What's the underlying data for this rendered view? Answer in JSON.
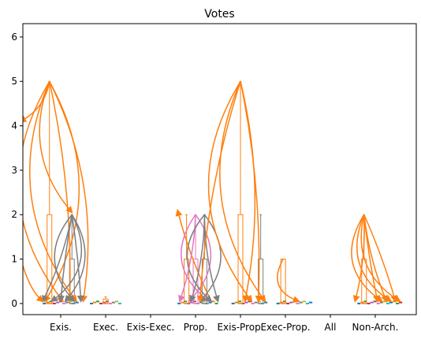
{
  "chart_data": {
    "type": "box",
    "title": "Votes",
    "xlabel": "",
    "ylabel": "",
    "categories": [
      "Exis.",
      "Exec.",
      "Exis-Exec.",
      "Prop.",
      "Exis-Prop.",
      "Exec-Prop.",
      "All",
      "Non-Arch."
    ],
    "yticks": [
      0,
      1,
      2,
      3,
      4,
      5,
      6
    ],
    "ylim": [
      -0.25,
      6.3
    ],
    "grid": false,
    "colors": {
      "orange": "#ff7f0e",
      "gray": "#7f7f7f",
      "pink": "#e377c2",
      "blue": "#1f77b4",
      "green": "#2ca02c",
      "red": "#d62728",
      "purple": "#9467bd",
      "brown": "#8c564b",
      "olive": "#bcbd22",
      "cyan": "#17becf"
    },
    "boxes": [
      {
        "category": "Exis.",
        "series": "orange",
        "offset": -0.25,
        "q1": 0,
        "median": 0,
        "q3": 2,
        "whisker_high": 5
      },
      {
        "category": "Exis.",
        "series": "gray",
        "offset": 0.25,
        "q1": 0,
        "median": 0,
        "q3": 1,
        "whisker_high": 2
      },
      {
        "category": "Exec.",
        "series": "orange",
        "offset": 0,
        "q1": 0,
        "median": 0,
        "q3": 0.1,
        "whisker_high": 0.15
      },
      {
        "category": "Prop.",
        "series": "orange",
        "offset": -0.2,
        "q1": 0,
        "median": 0,
        "q3": 1,
        "whisker_high": 2
      },
      {
        "category": "Prop.",
        "series": "pink",
        "offset": 0,
        "q1": 0,
        "median": 0,
        "q3": 1,
        "whisker_high": 2
      },
      {
        "category": "Prop.",
        "series": "gray",
        "offset": 0.2,
        "q1": 0,
        "median": 0,
        "q3": 1,
        "whisker_high": 2
      },
      {
        "category": "Exis-Prop.",
        "series": "orange",
        "offset": 0,
        "q1": 0,
        "median": 0,
        "q3": 2,
        "whisker_high": 5
      },
      {
        "category": "Exis-Prop.",
        "series": "gray",
        "offset": 0.45,
        "q1": 0,
        "median": 0,
        "q3": 1,
        "whisker_high": 2
      },
      {
        "category": "Exec-Prop.",
        "series": "orange",
        "offset": -0.05,
        "q1": 0,
        "median": 0,
        "q3": 1,
        "whisker_high": 1
      },
      {
        "category": "Non-Arch.",
        "series": "orange",
        "offset": -0.25,
        "q1": 0,
        "median": 0,
        "q3": 1,
        "whisker_high": 2
      }
    ],
    "arrows": [
      {
        "category": "Exis.",
        "series": "orange",
        "from_offset": -0.25,
        "from_y": 5,
        "targets": [
          [
            -0.9,
            4.1
          ],
          [
            -0.35,
            0.05
          ],
          [
            0.05,
            0.05
          ],
          [
            0.2,
            0.05
          ],
          [
            0.35,
            0.05
          ],
          [
            0.5,
            0.05
          ],
          [
            0.25,
            2.05
          ]
        ]
      },
      {
        "category": "Exis.",
        "series": "gray",
        "from_offset": 0.25,
        "from_y": 2,
        "targets": [
          [
            -0.4,
            0.05
          ],
          [
            -0.2,
            0.05
          ],
          [
            0,
            0.05
          ],
          [
            0.1,
            0.05
          ],
          [
            0.3,
            0.05
          ],
          [
            0.45,
            0.05
          ]
        ]
      },
      {
        "category": "Prop.",
        "series": "orange",
        "from_offset": 0.35,
        "from_y": 0.05,
        "targets": [
          [
            -0.4,
            2.1
          ]
        ]
      },
      {
        "category": "Prop.",
        "series": "pink",
        "from_offset": 0,
        "from_y": 2,
        "targets": [
          [
            -0.35,
            0.05
          ],
          [
            -0.15,
            0.05
          ],
          [
            0.3,
            0.05
          ]
        ]
      },
      {
        "category": "Prop.",
        "series": "gray",
        "from_offset": 0.2,
        "from_y": 2,
        "targets": [
          [
            -0.1,
            0.05
          ],
          [
            0.1,
            0.05
          ],
          [
            0.35,
            0.05
          ],
          [
            0.5,
            0.05
          ]
        ]
      },
      {
        "category": "Exis-Prop.",
        "series": "orange",
        "from_offset": 0,
        "from_y": 5,
        "targets": [
          [
            -0.9,
            0.05
          ],
          [
            0.1,
            0.05
          ],
          [
            0.25,
            0.05
          ],
          [
            0.4,
            0.05
          ],
          [
            0.55,
            0.05
          ]
        ]
      },
      {
        "category": "Exec-Prop.",
        "series": "orange",
        "from_offset": -0.05,
        "from_y": 1,
        "targets": [
          [
            0.3,
            0.05
          ]
        ]
      },
      {
        "category": "Non-Arch.",
        "series": "orange",
        "from_offset": -0.25,
        "from_y": 2,
        "targets": [
          [
            -0.45,
            0.05
          ],
          [
            0.05,
            0.05
          ],
          [
            0.15,
            0.05
          ],
          [
            0.25,
            0.05
          ],
          [
            0.35,
            0.05
          ],
          [
            0.45,
            0.05
          ],
          [
            0.55,
            0.05
          ]
        ]
      }
    ],
    "baseline_clusters": [
      {
        "category": "Exis.",
        "from_offset": -0.4,
        "to_offset": 0.4
      },
      {
        "category": "Exec.",
        "from_offset": -0.35,
        "to_offset": 0.35
      },
      {
        "category": "Prop.",
        "from_offset": -0.4,
        "to_offset": 0.5
      },
      {
        "category": "Exis-Prop.",
        "from_offset": -0.2,
        "to_offset": 0.6
      },
      {
        "category": "Exec-Prop.",
        "from_offset": -0.2,
        "to_offset": 0.6
      },
      {
        "category": "Non-Arch.",
        "from_offset": -0.4,
        "to_offset": 0.6
      }
    ],
    "edge_arrows": [
      {
        "series": "orange",
        "y_from": 0.85,
        "y_to": 0.05,
        "x_offset_from_left": 0
      }
    ]
  }
}
